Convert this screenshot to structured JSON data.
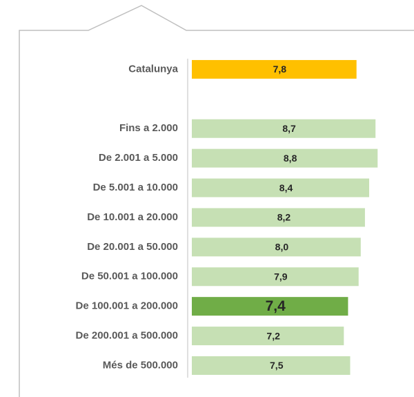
{
  "chart_data": {
    "type": "hbar",
    "categories": [
      "Catalunya",
      null,
      "Fins a 2.000",
      "De 2.001 a 5.000",
      "De 5.001 a 10.000",
      "De 10.001 a 20.000",
      "De 20.001 a 50.000",
      "De 50.001 a 100.000",
      "De 100.001 a 200.000",
      "De 200.001 a 500.000",
      "Més de 500.000"
    ],
    "values": [
      7.8,
      null,
      8.7,
      8.8,
      8.4,
      8.2,
      8.0,
      7.9,
      7.4,
      7.2,
      7.5
    ],
    "value_labels": [
      "7,8",
      null,
      "8,7",
      "8,8",
      "8,4",
      "8,2",
      "8,0",
      "7,9",
      "7,4",
      "7,2",
      "7,5"
    ],
    "colors": [
      "#ffc000",
      null,
      "#c6e0b4",
      "#c6e0b4",
      "#c6e0b4",
      "#c6e0b4",
      "#c6e0b4",
      "#c6e0b4",
      "#70ad47",
      "#c6e0b4",
      "#c6e0b4"
    ],
    "highlight": 8,
    "xlim": [
      0,
      10
    ]
  }
}
